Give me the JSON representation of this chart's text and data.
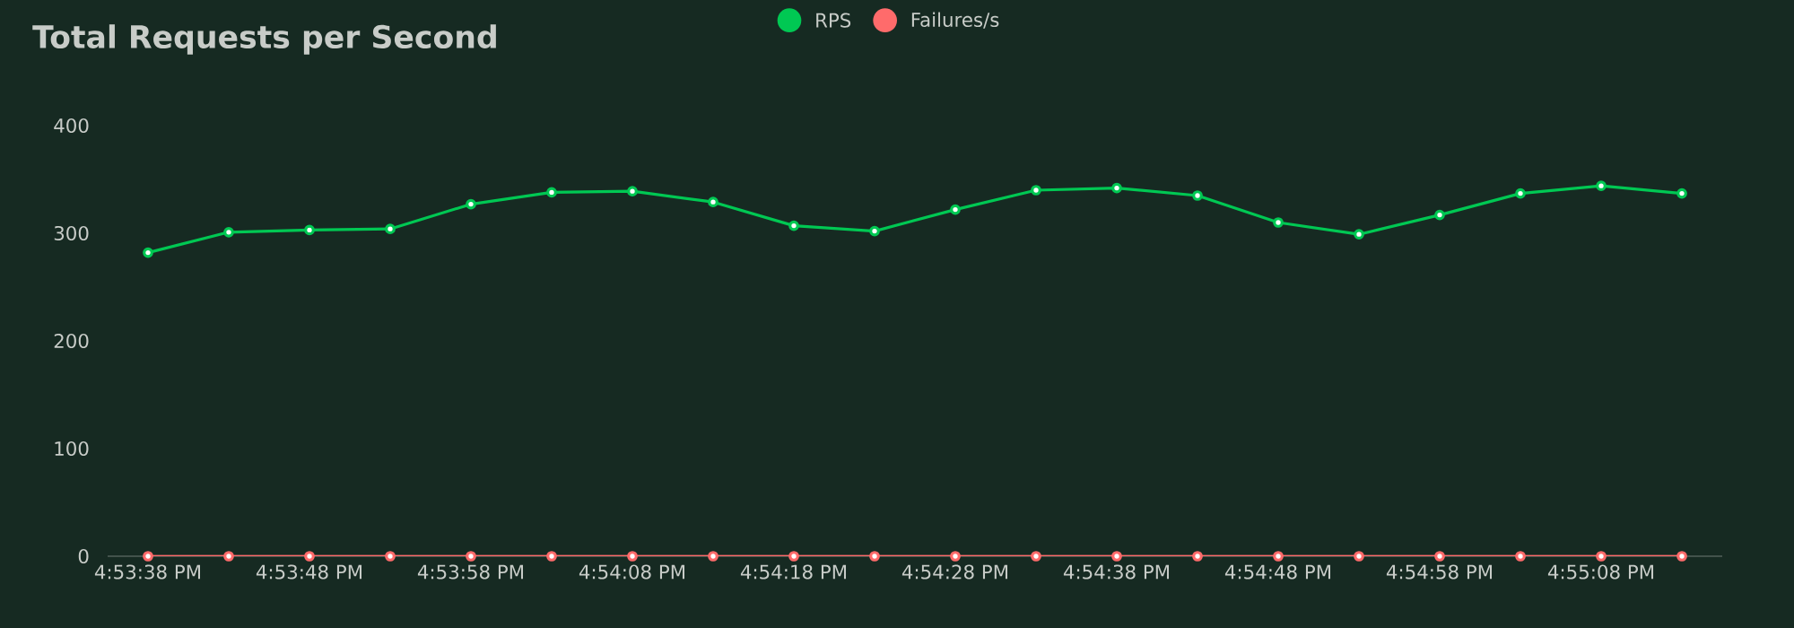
{
  "chart_data": {
    "type": "line",
    "title": "Total Requests per Second",
    "categories": [
      "4:53:38 PM",
      null,
      "4:53:48 PM",
      null,
      "4:53:58 PM",
      null,
      "4:54:08 PM",
      null,
      "4:54:18 PM",
      null,
      "4:54:28 PM",
      null,
      "4:54:38 PM",
      null,
      "4:54:48 PM",
      null,
      "4:54:58 PM",
      null,
      "4:55:08 PM",
      null
    ],
    "series": [
      {
        "name": "RPS",
        "color": "#00c853",
        "values": [
          282,
          301,
          303,
          304,
          327,
          338,
          339,
          329,
          307,
          302,
          322,
          340,
          342,
          335,
          310,
          299,
          317,
          337,
          344,
          337
        ]
      },
      {
        "name": "Failures/s",
        "color": "#ff6b6b",
        "values": [
          0,
          0,
          0,
          0,
          0,
          0,
          0,
          0,
          0,
          0,
          0,
          0,
          0,
          0,
          0,
          0,
          0,
          0,
          0,
          0
        ]
      }
    ],
    "ylim": [
      0,
      400
    ],
    "yticks": [
      0,
      100,
      200,
      300,
      400
    ],
    "grid": false,
    "legend": "top",
    "marker": "circle",
    "line_style": "solid"
  }
}
